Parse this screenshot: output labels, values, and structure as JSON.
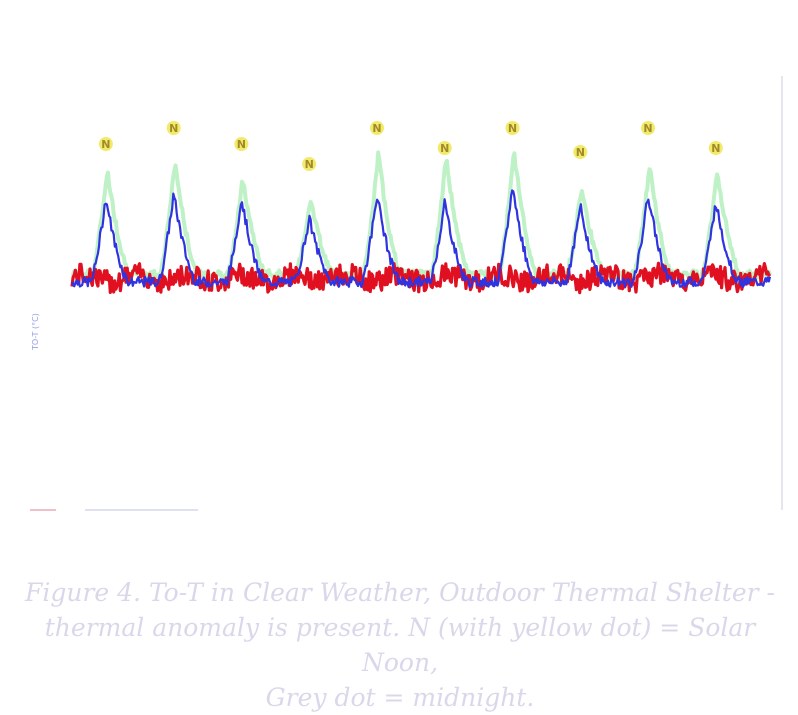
{
  "caption": {
    "line1": "Figure 4.  To-T in Clear Weather, Outdoor Thermal Shelter -",
    "line2": "thermal anomaly is present.  N (with yellow dot) = Solar Noon,",
    "line3": "Grey dot = midnight."
  },
  "chart_data": {
    "type": "line",
    "title": "",
    "xlabel": "",
    "ylabel": "",
    "grid": false,
    "legend": "none",
    "noon_markers": [
      {
        "day": 0.5,
        "label": "N"
      },
      {
        "day": 1.5,
        "label": "N"
      },
      {
        "day": 2.5,
        "label": "N"
      },
      {
        "day": 3.5,
        "label": "N"
      },
      {
        "day": 4.5,
        "label": "N"
      },
      {
        "day": 5.5,
        "label": "N"
      },
      {
        "day": 6.5,
        "label": "N"
      },
      {
        "day": 7.5,
        "label": "N"
      },
      {
        "day": 8.5,
        "label": "N"
      },
      {
        "day": 9.5,
        "label": "N"
      }
    ],
    "xlim": [
      0,
      10.3
    ],
    "ylim": [
      -1.5,
      3.5
    ],
    "series": [
      {
        "color": "#2f33e0",
        "peaks": [
          2.1,
          2.2,
          2.1,
          1.6,
          2.2,
          2.0,
          2.4,
          1.9,
          2.2,
          2.0
        ]
      },
      {
        "color": "#b8f0c0",
        "peaks": [
          2.6,
          2.8,
          2.4,
          1.9,
          3.0,
          2.9,
          3.1,
          2.2,
          2.7,
          2.6
        ]
      },
      {
        "color": "#e01020",
        "peaks": []
      }
    ],
    "colors": {
      "blue": "#2f33e0",
      "red": "#e01020",
      "green": "#b8f0c0",
      "noon_dot": "#f2ea6a"
    }
  }
}
